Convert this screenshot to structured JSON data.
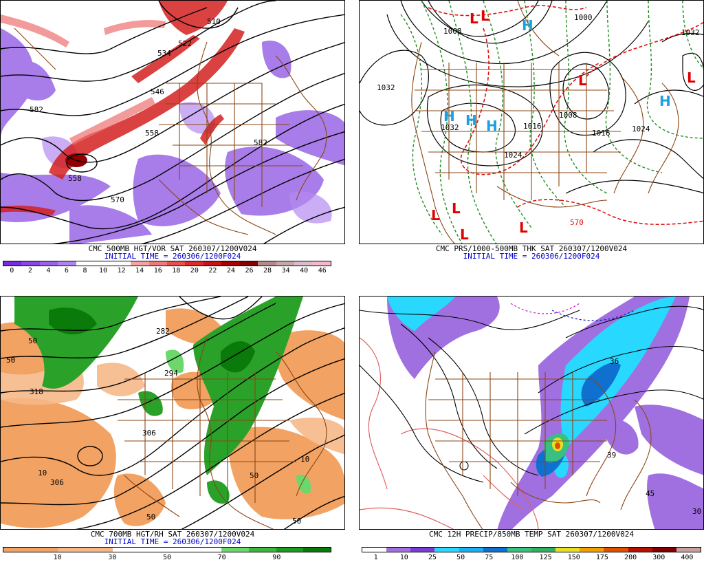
{
  "panels": {
    "p1": {
      "title": "CMC 500MB HGT/VOR SAT 260307/1200V024",
      "init": "INITIAL TIME = 260306/1200F024",
      "colorbar": {
        "colors": [
          "#7a2be0",
          "#8a46e8",
          "#9a62ea",
          "#b084f0",
          "#ffffff",
          "#ffffff",
          "#ffffff",
          "#f6a2a2",
          "#f07a7a",
          "#e85050",
          "#dc2b2b",
          "#c81414",
          "#a80000",
          "#880000",
          "#b58a8a",
          "#c6a8a8",
          "#dcbcc8",
          "#f4b8c8"
        ],
        "ticks": [
          "0",
          "2",
          "4",
          "6",
          "8",
          "10",
          "12",
          "14",
          "16",
          "18",
          "20",
          "22",
          "24",
          "26",
          "28",
          "34",
          "40",
          "46"
        ]
      },
      "contour_labels": [
        "522",
        "534",
        "546",
        "558",
        "558",
        "570",
        "582",
        "582",
        "510"
      ]
    },
    "p2": {
      "title": "CMC PRS/1000-500MB THK SAT 260307/1200V024",
      "init": "INITIAL TIME = 260306/1200F024",
      "contour_labels": [
        "1032",
        "1032",
        "1008",
        "1008",
        "1016",
        "1000",
        "1024",
        "1024",
        "1032",
        "1016",
        "570"
      ],
      "centers": [
        "L",
        "L",
        "H",
        "L",
        "H",
        "H",
        "H",
        "H",
        "L",
        "L",
        "L",
        "L",
        "L"
      ]
    },
    "p3": {
      "title": "CMC 700MB HGT/RH SAT 260307/1200V024",
      "init": "INITIAL TIME = 260306/1200F024",
      "colorbar": {
        "colors": [
          "#f2a262",
          "#f2a262",
          "#f6b888",
          "#f6b888",
          "#ffffff",
          "#ffffff",
          "#ffffff",
          "#ffffff",
          "#6cd86c",
          "#3cb83c",
          "#1c9c1c",
          "#0a7a0a"
        ],
        "ticks": [
          "10",
          "30",
          "50",
          "70",
          "90"
        ]
      },
      "contour_labels": [
        "318",
        "306",
        "282",
        "294",
        "306",
        "50",
        "50",
        "50",
        "10",
        "10",
        "50",
        "50"
      ]
    },
    "p4": {
      "title": "CMC 12H PRECIP/850MB TEMP SAT 260307/1200V024",
      "colorbar": {
        "colors": [
          "#ffffff",
          "#a070e0",
          "#7a3cd8",
          "#28d8ff",
          "#18b0f0",
          "#1070d0",
          "#38c080",
          "#30b060",
          "#e8e020",
          "#f0a000",
          "#e05000",
          "#b81000",
          "#800000",
          "#c8a0a0"
        ],
        "ticks": [
          "1",
          "10",
          "25",
          "50",
          "75",
          "100",
          "125",
          "150",
          "175",
          "200",
          "300",
          "400"
        ]
      },
      "contour_labels": [
        "39",
        "36",
        "45",
        "30"
      ]
    }
  }
}
